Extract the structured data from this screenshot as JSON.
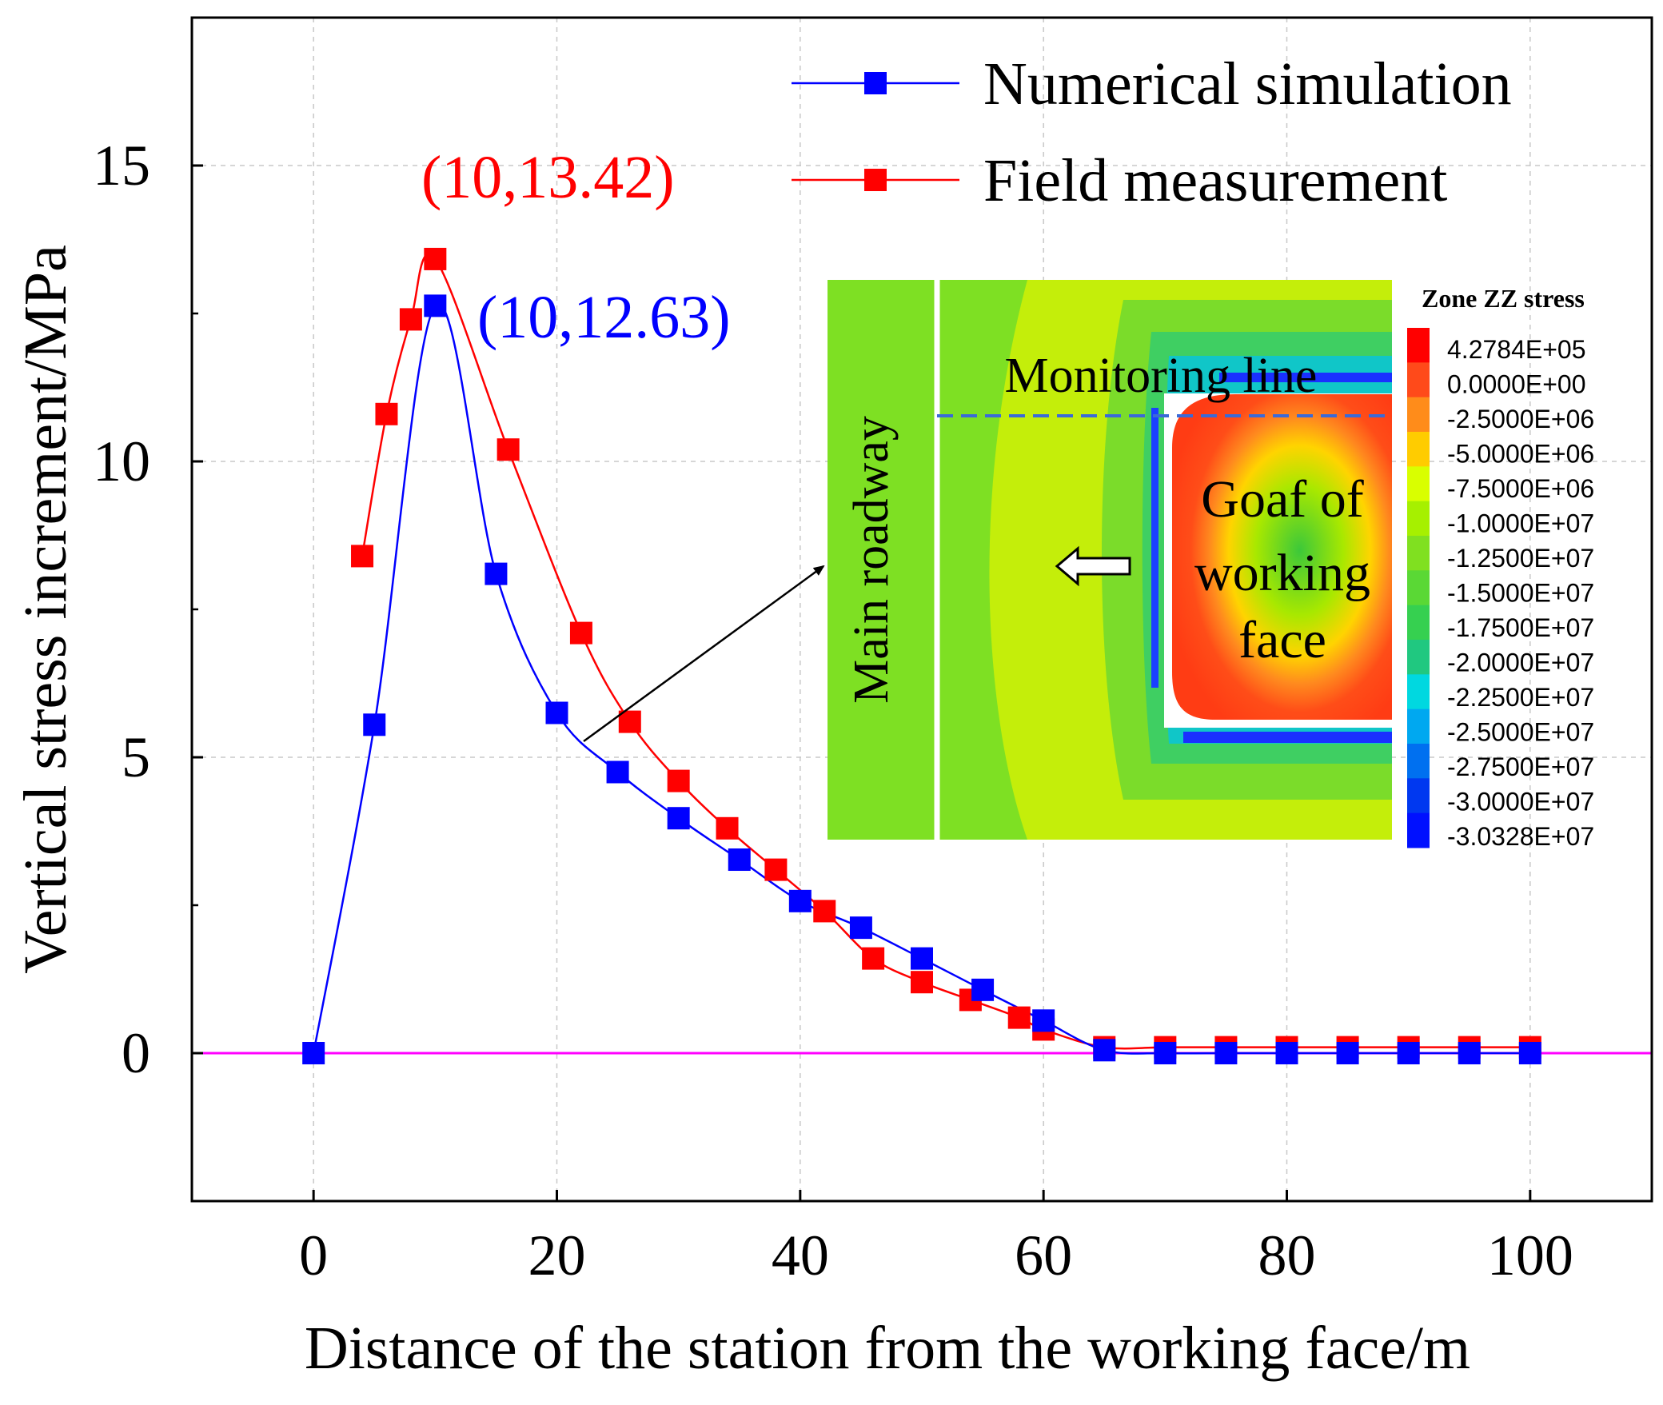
{
  "chart_data": {
    "type": "line",
    "title": "",
    "xlabel": "Distance of the station from the working face/m",
    "ylabel": "Vertical stress increment/MPa",
    "xlim": [
      -10,
      110
    ],
    "ylim": [
      -2.5,
      17.5
    ],
    "xticks": [
      0,
      20,
      40,
      60,
      80,
      100
    ],
    "yticks": [
      0,
      5,
      10,
      15
    ],
    "xtick_labels": [
      "0",
      "20",
      "40",
      "60",
      "80",
      "100"
    ],
    "ytick_labels": [
      "0",
      "5",
      "10",
      "15"
    ],
    "grid": true,
    "legend_position": "top-right",
    "baseline": {
      "y": 0,
      "color": "#ff00ff"
    },
    "series": [
      {
        "name": "Numerical simulation",
        "color": "#0000ff",
        "smooth": true,
        "x": [
          0,
          5,
          10,
          15,
          20,
          25,
          30,
          35,
          40,
          45,
          50,
          55,
          60,
          65,
          70,
          75,
          80,
          85,
          90,
          95,
          100
        ],
        "y": [
          0,
          5.55,
          12.63,
          8.1,
          5.75,
          4.75,
          3.97,
          3.27,
          2.57,
          2.12,
          1.6,
          1.07,
          0.55,
          0.05,
          0,
          0,
          0,
          0,
          0,
          0,
          0
        ]
      },
      {
        "name": "Field measurement",
        "color": "#ff0000",
        "smooth": true,
        "x": [
          4,
          6,
          8,
          10,
          16,
          22,
          26,
          30,
          34,
          38,
          42,
          46,
          50,
          54,
          58,
          60,
          65,
          70,
          75,
          80,
          85,
          90,
          95,
          100
        ],
        "y": [
          8.4,
          10.8,
          12.4,
          13.42,
          10.2,
          7.1,
          5.6,
          4.6,
          3.8,
          3.1,
          2.4,
          1.6,
          1.2,
          0.9,
          0.6,
          0.4,
          0.1,
          0.1,
          0.1,
          0.1,
          0.1,
          0.1,
          0.1,
          0.1
        ]
      }
    ],
    "annotations": [
      {
        "text": "(10,13.42)",
        "color": "#ff0000",
        "x": 10,
        "y": 13.42
      },
      {
        "text": "(10,12.63)",
        "color": "#0000ff",
        "x": 10,
        "y": 12.63
      }
    ]
  },
  "inset": {
    "roadway_label": "Main roadway",
    "monitoring_label": "Monitoring line",
    "goaf_label_lines": [
      "Goaf of",
      "working",
      "face"
    ],
    "colorbar_title": "Zone ZZ stress",
    "colorbar_labels": [
      "4.2784E+05",
      "0.0000E+00",
      "-2.5000E+06",
      "-5.0000E+06",
      "-7.5000E+06",
      "-1.0000E+07",
      "-1.2500E+07",
      "-1.5000E+07",
      "-1.7500E+07",
      "-2.0000E+07",
      "-2.2500E+07",
      "-2.5000E+07",
      "-2.7500E+07",
      "-3.0000E+07",
      "-3.0328E+07"
    ],
    "colorbar_colors": [
      "#ff0000",
      "#ff4a1a",
      "#ff8c1a",
      "#ffcc00",
      "#d9ff00",
      "#a6f000",
      "#80e020",
      "#5ad835",
      "#36d050",
      "#20c880",
      "#00d8e0",
      "#00a8f0",
      "#0070f0",
      "#0038f0",
      "#0010ff"
    ]
  }
}
